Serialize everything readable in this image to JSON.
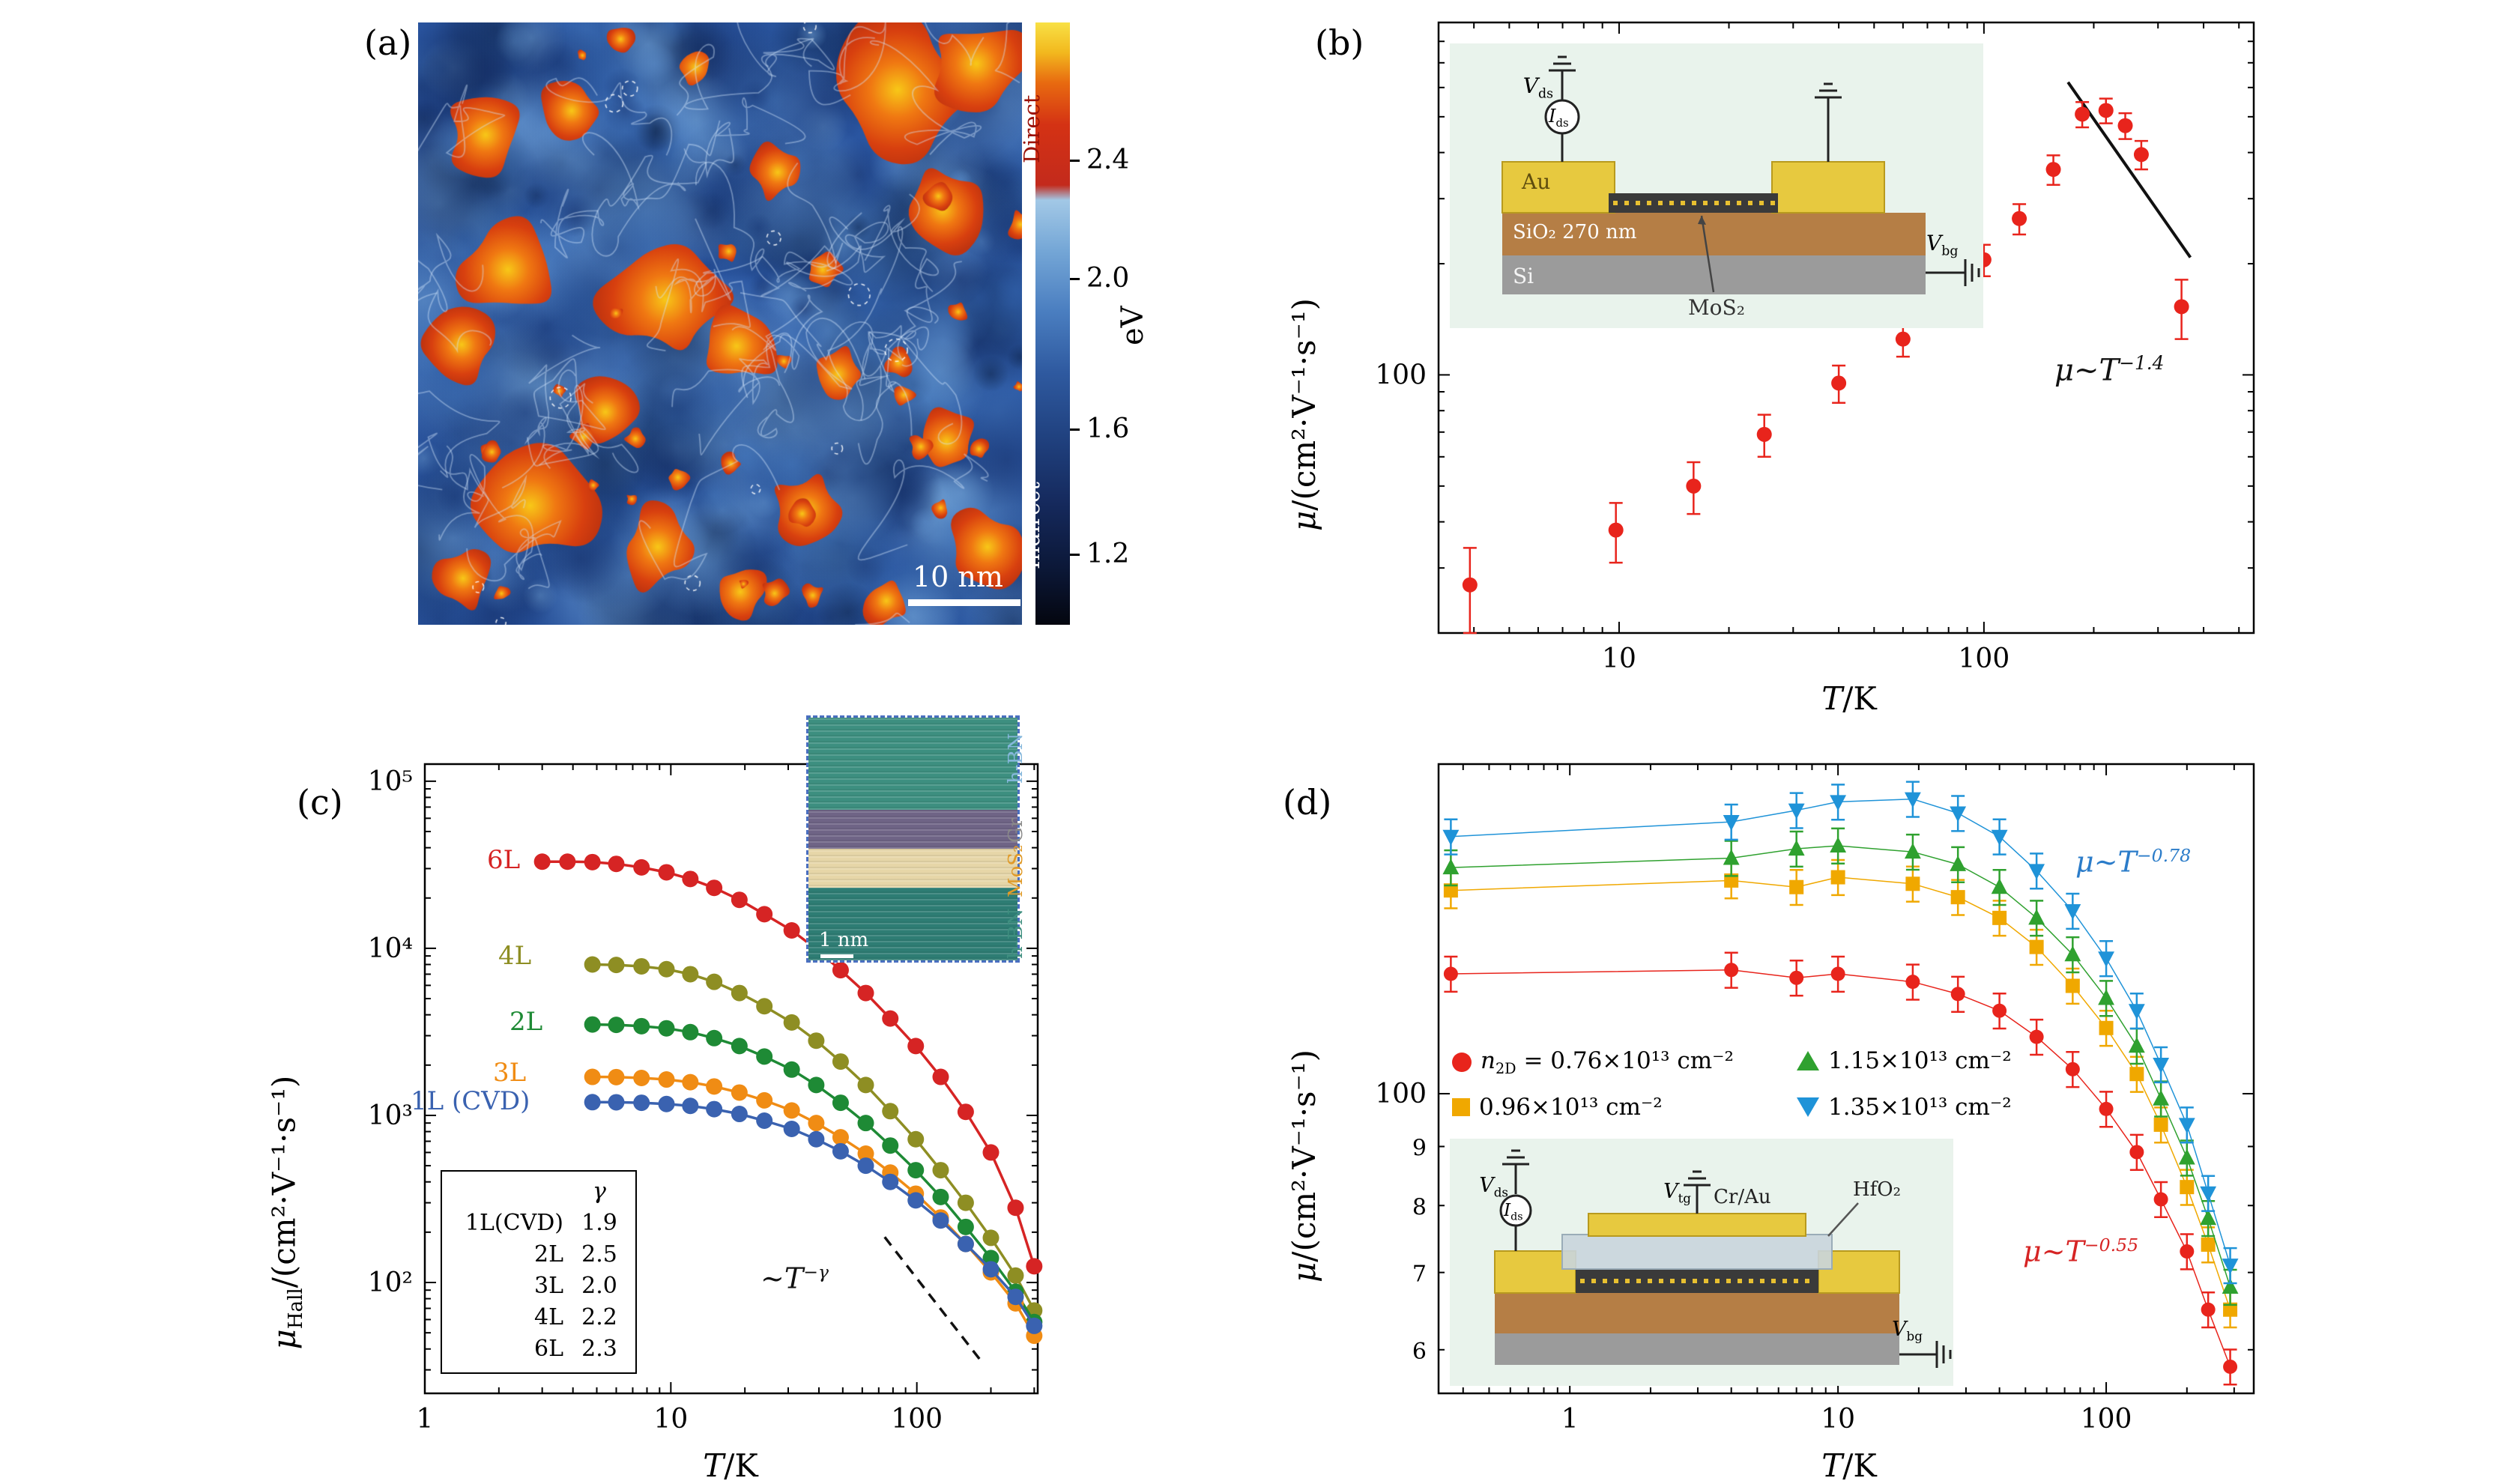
{
  "figure": {
    "panel_a": {
      "label": "(a)",
      "scalebar_label": "10 nm",
      "colorbar": {
        "unit": "eV",
        "tick_labels": [
          "2.4",
          "2.0",
          "1.6",
          "1.2"
        ],
        "direct_label": "Direct",
        "indirect_label": "Indirect"
      }
    },
    "panel_b": {
      "label": "(b)",
      "annotation": {
        "base": "μ~T",
        "exp": "−1.4",
        "color": "#111111"
      },
      "inset": {
        "au": "Au",
        "sio2": "SiO₂ 270 nm",
        "si": "Si",
        "mos2": "MoS₂",
        "vds_sym": "V",
        "vds_sub": "ds",
        "ids_sym": "I",
        "ids_sub": "ds",
        "vbg_sym": "V",
        "vbg_sub": "bg"
      }
    },
    "panel_c": {
      "label": "(c)",
      "annotation": {
        "base": "~T",
        "exp": "−γ",
        "color": "#111111"
      },
      "series_labels": [
        {
          "text": "6L",
          "color": "#d62424"
        },
        {
          "text": "4L",
          "color": "#8e8e23"
        },
        {
          "text": "2L",
          "color": "#1e8a35"
        },
        {
          "text": "3L",
          "color": "#f08c14"
        },
        {
          "text": "1L (CVD)",
          "color": "#3a62b0"
        }
      ],
      "table": {
        "header": "γ",
        "rows": [
          {
            "name": "1L(CVD)",
            "value": "1.9"
          },
          {
            "name": "2L",
            "value": "2.5"
          },
          {
            "name": "3L",
            "value": "2.0"
          },
          {
            "name": "4L",
            "value": "2.2"
          },
          {
            "name": "6L",
            "value": "2.3"
          }
        ]
      },
      "tem_inset": {
        "labels": [
          {
            "text": "h-BN",
            "color": "#85b7dc"
          },
          {
            "text": "Gr",
            "color": "#8a8a8a"
          },
          {
            "text": "MoS₂",
            "color": "#e09a28"
          },
          {
            "text": "h-BN",
            "color": "#3f8f80"
          }
        ],
        "scalebar_label": "1 nm"
      }
    },
    "panel_d": {
      "label": "(d)",
      "annotation_blue": {
        "base": "μ~T",
        "exp": "−0.78",
        "color": "#2b7cc9"
      },
      "annotation_red": {
        "base": "μ~T",
        "exp": "−0.55",
        "color": "#d62424"
      },
      "legend": [
        {
          "pre_sym": "n",
          "pre_sub": "2D",
          "text": " = 0.76×10¹³ cm⁻²",
          "marker": "circle",
          "color": "#e8241c"
        },
        {
          "pre_sym": "",
          "pre_sub": "",
          "text": "0.96×10¹³ cm⁻²",
          "marker": "square",
          "color": "#f0a800"
        },
        {
          "pre_sym": "",
          "pre_sub": "",
          "text": "1.15×10¹³ cm⁻²",
          "marker": "triangle-up",
          "color": "#2fa12f"
        },
        {
          "pre_sym": "",
          "pre_sub": "",
          "text": "1.35×10¹³ cm⁻²",
          "marker": "triangle-down",
          "color": "#1f93d8"
        }
      ],
      "inset": {
        "crau": "Cr/Au",
        "hfo2": "HfO₂",
        "vds_sym": "V",
        "vds_sub": "ds",
        "ids_sym": "I",
        "ids_sub": "ds",
        "vtg_sym": "V",
        "vtg_sub": "tg",
        "vbg_sym": "V",
        "vbg_sub": "bg"
      }
    }
  },
  "chart_data": [
    {
      "id": "b",
      "type": "scatter",
      "xscale": "log",
      "yscale": "log",
      "xlim": [
        3.2,
        549
      ],
      "ylim": [
        20,
        900
      ],
      "grid": false,
      "xlabel": {
        "sym": "T",
        "rest": "/K"
      },
      "ylabel": {
        "sym": "μ",
        "rest": "/(cm²·V⁻¹·s⁻¹)"
      },
      "xtick_labels": [
        {
          "v": 10,
          "label": "10"
        },
        {
          "v": 100,
          "label": "100"
        }
      ],
      "ytick_labels": [
        {
          "v": 100,
          "label": "100"
        }
      ],
      "series": [
        {
          "name": "field-effect-mobility",
          "marker": "circle",
          "color": "#e8241c",
          "x": [
            3.9,
            9.8,
            16,
            25,
            40,
            60,
            80,
            100,
            125,
            155,
            186,
            216,
            244,
            270,
            348
          ],
          "y": [
            27,
            38,
            50,
            69,
            95,
            125,
            160,
            205,
            265,
            360,
            508,
            520,
            473,
            395,
            153
          ],
          "yerr": [
            7,
            7,
            8,
            9,
            11,
            13,
            16,
            20,
            25,
            33,
            40,
            40,
            38,
            35,
            28
          ]
        }
      ],
      "guide_lines": [
        {
          "p1": [
            170,
            620
          ],
          "p2": [
            368,
            208
          ],
          "color": "#111",
          "width": 4,
          "note": "mu ~ T^-1.4"
        }
      ]
    },
    {
      "id": "c",
      "type": "scatter-line",
      "xscale": "log",
      "yscale": "log",
      "xlim": [
        1,
        310
      ],
      "ylim": [
        21.7,
        126600
      ],
      "grid": false,
      "xlabel": {
        "sym": "T",
        "rest": "/K"
      },
      "ylabel": {
        "sym": "μ",
        "sub": "Hall",
        "rest": "/(cm²·V⁻¹·s⁻¹)"
      },
      "xtick_labels": [
        {
          "v": 1,
          "label": "1"
        },
        {
          "v": 10,
          "label": "10"
        },
        {
          "v": 100,
          "label": "100"
        }
      ],
      "ytick_labels": [
        {
          "v": 100,
          "label": "10²"
        },
        {
          "v": 1000,
          "label": "10³"
        },
        {
          "v": 10000,
          "label": "10⁴"
        },
        {
          "v": 100000,
          "label": "10⁵"
        }
      ],
      "series": [
        {
          "name": "6L",
          "gamma": 2.3,
          "marker": "circle",
          "line": true,
          "color": "#d62424",
          "x": [
            3,
            3.8,
            4.8,
            6,
            7.6,
            9.6,
            12,
            15,
            19,
            24,
            31,
            39,
            49,
            62,
            78,
            99,
            125,
            158,
            200,
            252,
            300
          ],
          "y": [
            33000,
            33000,
            32800,
            32000,
            30500,
            28500,
            26000,
            23000,
            19500,
            16000,
            12800,
            9900,
            7400,
            5400,
            3800,
            2600,
            1700,
            1050,
            600,
            280,
            125
          ]
        },
        {
          "name": "4L",
          "gamma": 2.2,
          "marker": "circle",
          "line": true,
          "color": "#8e8e23",
          "x": [
            4.8,
            6,
            7.6,
            9.6,
            12,
            15,
            19,
            24,
            31,
            39,
            49,
            62,
            78,
            99,
            125,
            158,
            200,
            252,
            300
          ],
          "y": [
            8000,
            7950,
            7800,
            7500,
            7000,
            6300,
            5400,
            4500,
            3600,
            2800,
            2100,
            1520,
            1060,
            720,
            470,
            300,
            185,
            110,
            68
          ]
        },
        {
          "name": "2L",
          "gamma": 2.5,
          "marker": "circle",
          "line": true,
          "color": "#1e8a35",
          "x": [
            4.8,
            6,
            7.6,
            9.6,
            12,
            15,
            19,
            24,
            31,
            39,
            49,
            62,
            78,
            99,
            125,
            158,
            200,
            252,
            300
          ],
          "y": [
            3500,
            3480,
            3420,
            3320,
            3150,
            2900,
            2600,
            2250,
            1880,
            1520,
            1190,
            900,
            660,
            470,
            325,
            215,
            140,
            88,
            58
          ]
        },
        {
          "name": "3L",
          "gamma": 2.0,
          "marker": "circle",
          "line": true,
          "color": "#f08c14",
          "x": [
            4.8,
            6,
            7.6,
            9.6,
            12,
            15,
            19,
            24,
            31,
            39,
            49,
            62,
            78,
            99,
            125,
            158,
            200,
            252,
            300
          ],
          "y": [
            1700,
            1695,
            1675,
            1640,
            1580,
            1490,
            1370,
            1230,
            1070,
            900,
            740,
            590,
            455,
            340,
            245,
            170,
            115,
            75,
            48
          ]
        },
        {
          "name": "1L (CVD)",
          "gamma": 1.9,
          "marker": "circle",
          "line": true,
          "color": "#3a62b0",
          "x": [
            4.8,
            6,
            7.6,
            9.6,
            12,
            15,
            19,
            24,
            31,
            39,
            49,
            62,
            78,
            99,
            125,
            158,
            200,
            252,
            300
          ],
          "y": [
            1200,
            1198,
            1190,
            1170,
            1140,
            1090,
            1020,
            930,
            830,
            720,
            610,
            500,
            400,
            310,
            235,
            170,
            120,
            82,
            55
          ]
        }
      ],
      "guide_lines": [
        {
          "p1": [
            74,
            187
          ],
          "p2": [
            185,
            33
          ],
          "color": "#111",
          "width": 3.5,
          "dash": "14 10",
          "note": "~T^-gamma"
        }
      ]
    },
    {
      "id": "d",
      "type": "scatter-line",
      "xscale": "log",
      "yscale": "log",
      "xlim": [
        0.324,
        355
      ],
      "ylim": [
        55,
        193
      ],
      "grid": false,
      "xlabel": {
        "sym": "T",
        "rest": "/K"
      },
      "ylabel": {
        "sym": "μ",
        "rest": "/(cm²·V⁻¹·s⁻¹)"
      },
      "xtick_labels": [
        {
          "v": 1,
          "label": "1"
        },
        {
          "v": 10,
          "label": "10"
        },
        {
          "v": 100,
          "label": "100"
        }
      ],
      "ytick_labels": [
        {
          "v": 100,
          "label": "100"
        },
        {
          "v": 90,
          "label": "9",
          "small": true
        },
        {
          "v": 80,
          "label": "8",
          "small": true
        },
        {
          "v": 70,
          "label": "7",
          "small": true
        },
        {
          "v": 60,
          "label": "6",
          "small": true
        }
      ],
      "series": [
        {
          "name": "n2D=0.76e13",
          "marker": "circle",
          "color": "#e8241c",
          "line": true,
          "line_width": 1.5,
          "yerr_frac": 0.035,
          "x": [
            0.36,
            4,
            7,
            10,
            19,
            28,
            40,
            55,
            75,
            100,
            130,
            160,
            200,
            240,
            290
          ],
          "y": [
            127,
            128,
            126,
            127,
            125,
            122,
            118,
            112,
            105,
            97,
            89,
            81,
            73,
            65,
            58
          ]
        },
        {
          "name": "n2D=0.96e13",
          "marker": "square",
          "color": "#f0a800",
          "line": true,
          "line_width": 1.5,
          "yerr_frac": 0.035,
          "x": [
            0.36,
            4,
            7,
            10,
            19,
            28,
            40,
            55,
            75,
            100,
            130,
            160,
            200,
            240,
            290
          ],
          "y": [
            150,
            153,
            151,
            154,
            152,
            148,
            142,
            134,
            124,
            114,
            104,
            94,
            83,
            74,
            65
          ]
        },
        {
          "name": "n2D=1.15e13",
          "marker": "triangle-up",
          "color": "#2fa12f",
          "line": true,
          "line_width": 1.5,
          "yerr_frac": 0.035,
          "x": [
            0.36,
            4,
            7,
            10,
            19,
            28,
            40,
            55,
            75,
            100,
            130,
            160,
            200,
            240,
            290
          ],
          "y": [
            157,
            160,
            163,
            164,
            162,
            158,
            151,
            142,
            132,
            121,
            110,
            99,
            88,
            78,
            68
          ]
        },
        {
          "name": "n2D=1.35e13",
          "marker": "triangle-down",
          "color": "#1f93d8",
          "line": true,
          "line_width": 1.5,
          "yerr_frac": 0.035,
          "x": [
            0.36,
            4,
            7,
            10,
            19,
            28,
            40,
            55,
            75,
            100,
            130,
            160,
            200,
            240,
            290
          ],
          "y": [
            167,
            172,
            176,
            179,
            180,
            175,
            167,
            156,
            144,
            131,
            118,
            106,
            94,
            82,
            71
          ]
        }
      ],
      "guide_lines": []
    }
  ]
}
